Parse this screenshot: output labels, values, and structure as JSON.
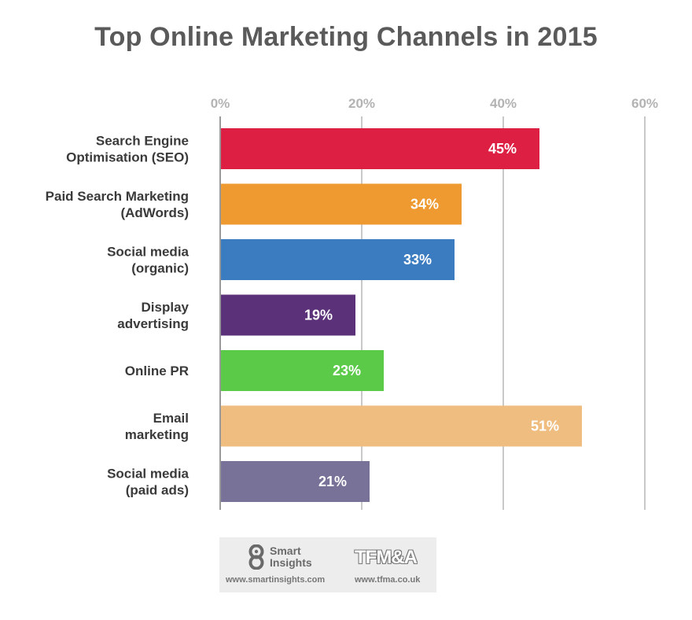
{
  "chart_data": {
    "type": "bar",
    "orientation": "horizontal",
    "title": "Top Online Marketing Channels in 2015",
    "categories": [
      [
        "Search Engine",
        "Optimisation (SEO)"
      ],
      [
        "Paid Search Marketing",
        "(AdWords)"
      ],
      [
        "Social media",
        "(organic)"
      ],
      [
        "Display",
        "advertising"
      ],
      [
        "Online PR"
      ],
      [
        "Email",
        "marketing"
      ],
      [
        "Social media",
        "(paid ads)"
      ]
    ],
    "values": [
      45,
      34,
      33,
      19,
      23,
      51,
      21
    ],
    "value_labels": [
      "45%",
      "34%",
      "33%",
      "19%",
      "23%",
      "51%",
      "21%"
    ],
    "colors": [
      "#dd1f43",
      "#ee9a30",
      "#3b7cc0",
      "#5b3279",
      "#5cca49",
      "#efbd80",
      "#787299"
    ],
    "xlim": [
      0,
      60
    ],
    "xticks": [
      0,
      20,
      40,
      60
    ],
    "xtick_labels": [
      "0%",
      "20%",
      "40%",
      "60%"
    ],
    "grid": true,
    "tick_position": "top"
  },
  "footer": {
    "smartinsights_name": "Smart Insights",
    "smartinsights_url": "www.smartinsights.com",
    "tfma_name": "TFM&A",
    "tfma_url": "www.tfma.co.uk"
  }
}
